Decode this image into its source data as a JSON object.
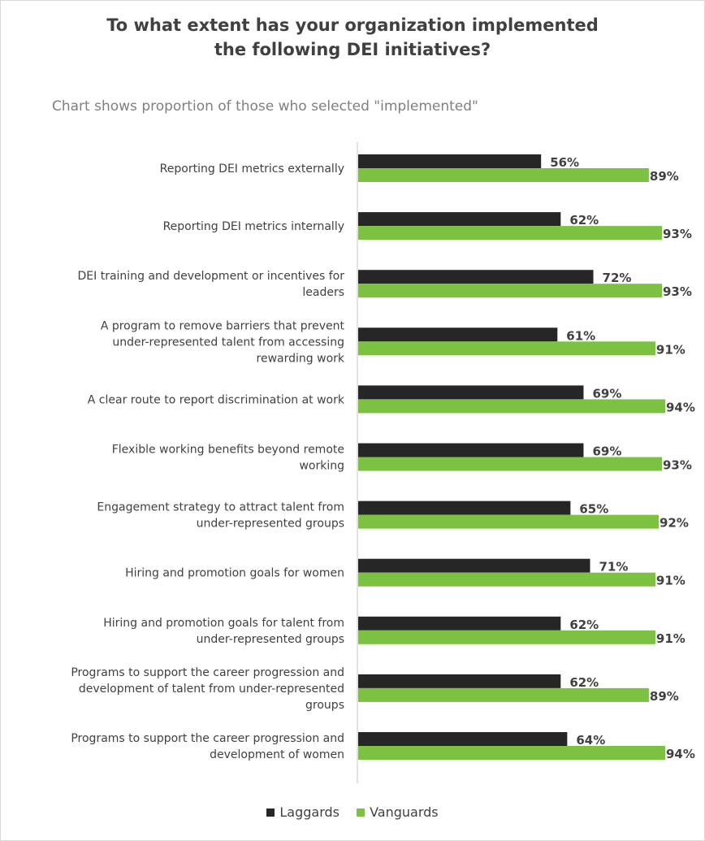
{
  "chart_data": {
    "type": "bar",
    "orientation": "horizontal",
    "title_lines": [
      "To what extent has your organization implemented",
      "the following DEI initiatives?"
    ],
    "subtitle": "Chart shows proportion of those who selected \"implemented\"",
    "categories": [
      [
        "Reporting DEI metrics externally"
      ],
      [
        "Reporting DEI metrics internally"
      ],
      [
        "DEI training and development or incentives for",
        "leaders"
      ],
      [
        "A program to remove barriers that prevent",
        "under-represented talent from accessing",
        "rewarding work"
      ],
      [
        "A clear route to report discrimination at work"
      ],
      [
        "Flexible working benefits beyond remote",
        "working"
      ],
      [
        "Engagement strategy to attract talent from",
        "under-represented groups"
      ],
      [
        "Hiring and promotion goals for women"
      ],
      [
        "Hiring and promotion goals for talent from",
        "under-represented groups"
      ],
      [
        "Programs to support the career progression and",
        "development of talent from under-represented",
        "groups"
      ],
      [
        "Programs to support the career progression and",
        "development of women"
      ]
    ],
    "series": [
      {
        "name": "Laggards",
        "color": "#262626",
        "values": [
          56,
          62,
          72,
          61,
          69,
          69,
          65,
          71,
          62,
          62,
          64
        ],
        "labels": [
          "56%",
          "62%",
          "72%",
          "61%",
          "69%",
          "69%",
          "65%",
          "71%",
          "62%",
          "62%",
          "64%"
        ]
      },
      {
        "name": "Vanguards",
        "color": "#7dc142",
        "values": [
          89,
          93,
          93,
          91,
          94,
          93,
          92,
          91,
          91,
          89,
          94
        ],
        "labels": [
          "89%",
          "93%",
          "93%",
          "91%",
          "94%",
          "93%",
          "92%",
          "91%",
          "91%",
          "89%",
          "94%"
        ]
      }
    ],
    "xlim": [
      0,
      94
    ],
    "grid": false,
    "legend_position": "bottom",
    "axis_color": "#d9d9d9"
  }
}
